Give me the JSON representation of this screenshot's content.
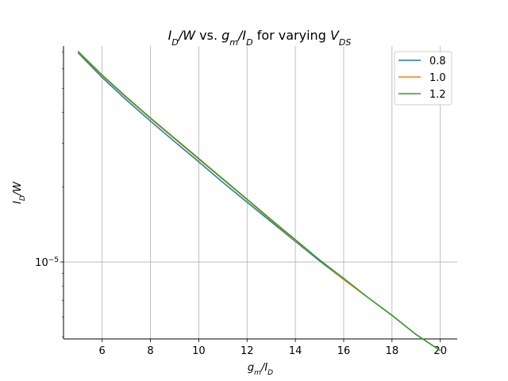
{
  "chart_data": {
    "type": "line",
    "title_parts": [
      {
        "text": "I",
        "italic": true
      },
      {
        "text": "D",
        "italic": true,
        "sub": true
      },
      {
        "text": "/",
        "italic": true
      },
      {
        "text": "W",
        "italic": true
      },
      {
        "text": " vs. "
      },
      {
        "text": "g",
        "italic": true
      },
      {
        "text": "m",
        "italic": true,
        "sub": true
      },
      {
        "text": "/",
        "italic": true
      },
      {
        "text": "I",
        "italic": true
      },
      {
        "text": "D",
        "italic": true,
        "sub": true
      },
      {
        "text": " for varying "
      },
      {
        "text": "V",
        "italic": true
      },
      {
        "text": "DS",
        "italic": true,
        "sub": true
      }
    ],
    "xlabel_parts": [
      {
        "text": "g",
        "italic": true
      },
      {
        "text": "m",
        "italic": true,
        "sub": true
      },
      {
        "text": "/",
        "italic": true
      },
      {
        "text": "I",
        "italic": true
      },
      {
        "text": "D",
        "italic": true,
        "sub": true
      }
    ],
    "ylabel_parts": [
      {
        "text": "I",
        "italic": true
      },
      {
        "text": "D",
        "italic": true,
        "sub": true
      },
      {
        "text": "/",
        "italic": true
      },
      {
        "text": "W",
        "italic": true
      }
    ],
    "xlim": [
      4.4,
      20.7
    ],
    "ylim": [
      4.9e-06,
      7.4e-05
    ],
    "yscale": "log",
    "grid": true,
    "legend_position": "top-right",
    "x_ticks": [
      6,
      8,
      10,
      12,
      14,
      16,
      18,
      20
    ],
    "y_tick_labels": [
      {
        "value": 1e-05,
        "base": "10",
        "exponent": "−5"
      }
    ],
    "x": [
      5,
      6,
      7,
      8,
      9,
      10,
      11,
      12,
      13,
      14,
      15,
      16,
      17,
      18,
      19,
      20
    ],
    "series": [
      {
        "name": "0.8",
        "color": "#1f77b4",
        "values": [
          6.95e-05,
          5.53e-05,
          4.49e-05,
          3.69e-05,
          3.05e-05,
          2.53e-05,
          2.09e-05,
          1.74e-05,
          1.45e-05,
          1.21e-05,
          1.01e-05,
          8.5e-06,
          7.2e-06,
          6.1e-06,
          5.1e-06,
          4.4e-06
        ]
      },
      {
        "name": "1.0",
        "color": "#ff7f0e",
        "values": [
          7.02e-05,
          5.63e-05,
          4.59e-05,
          3.78e-05,
          3.13e-05,
          2.59e-05,
          2.15e-05,
          1.78e-05,
          1.47e-05,
          1.22e-05,
          1.02e-05,
          8.5e-06,
          7.2e-06,
          6.1e-06,
          5.1e-06,
          4.4e-06
        ]
      },
      {
        "name": "1.2",
        "color": "#2ca02c",
        "values": [
          7.05e-05,
          5.66e-05,
          4.62e-05,
          3.8e-05,
          3.15e-05,
          2.61e-05,
          2.16e-05,
          1.79e-05,
          1.48e-05,
          1.23e-05,
          1.02e-05,
          8.6e-06,
          7.2e-06,
          6.1e-06,
          5.1e-06,
          4.4e-06
        ]
      }
    ]
  }
}
